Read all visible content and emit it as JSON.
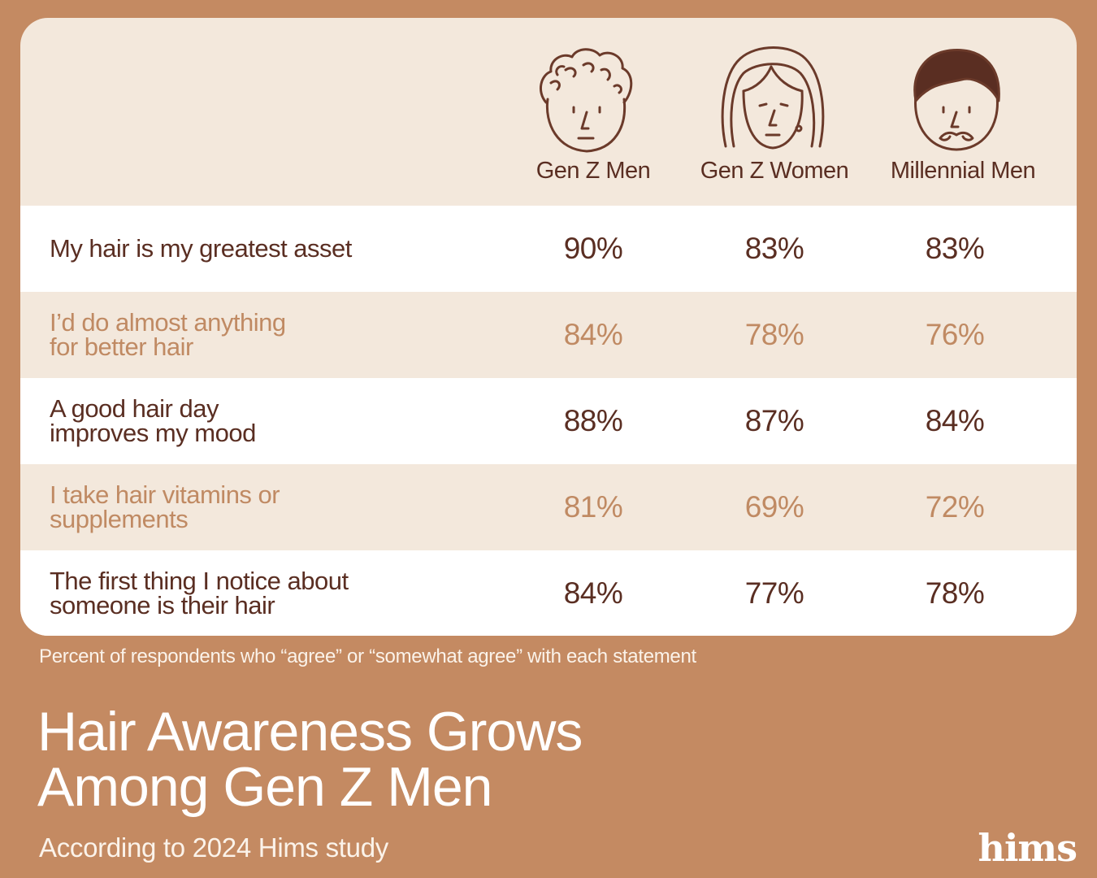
{
  "chart_data": {
    "type": "table",
    "columns": [
      "Gen Z Men",
      "Gen Z Women",
      "Millennial Men"
    ],
    "rows": [
      {
        "label": "My hair is my greatest asset",
        "values": [
          "90%",
          "83%",
          "83%"
        ]
      },
      {
        "label": "I’d do almost anything\nfor better hair",
        "values": [
          "84%",
          "78%",
          "76%"
        ]
      },
      {
        "label": "A good hair day\nimproves my mood",
        "values": [
          "88%",
          "87%",
          "84%"
        ]
      },
      {
        "label": "I take hair vitamins or\nsupplements",
        "values": [
          "81%",
          "69%",
          "72%"
        ]
      },
      {
        "label": "The first thing I notice about\nsomeone is their hair",
        "values": [
          "84%",
          "77%",
          "78%"
        ]
      }
    ],
    "footnote": "Percent of respondents who “agree” or “somewhat agree” with each statement",
    "title_line1": "Hair Awareness Grows",
    "title_line2": "Among Gen Z Men",
    "subtitle": "According to 2024 Hims study"
  },
  "brand": {
    "logo": "hims"
  },
  "colors": {
    "background": "#c48a62",
    "card": "#f3e8dc",
    "dark_text": "#5a2e22",
    "muted_text": "#c08a63",
    "white_row": "#ffffff"
  },
  "icons": [
    "curly-hair-man-icon",
    "long-hair-woman-icon",
    "mustache-man-icon"
  ]
}
